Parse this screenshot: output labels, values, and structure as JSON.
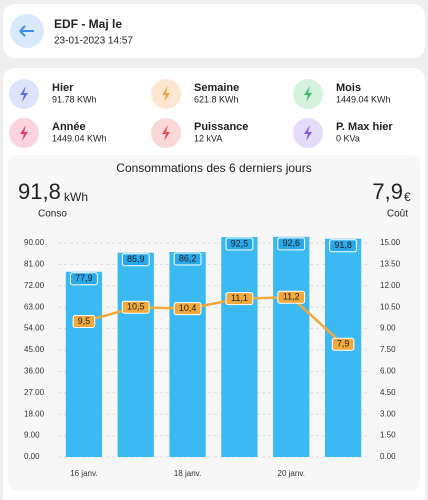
{
  "header": {
    "title": "EDF - Maj le",
    "subtitle": "23-01-2023 14:57"
  },
  "tiles": [
    {
      "label": "Hier",
      "value": "91.78 KWh"
    },
    {
      "label": "Semaine",
      "value": "621.8 KWh"
    },
    {
      "label": "Mois",
      "value": "1449.04 KWh"
    },
    {
      "label": "Année",
      "value": "1449.04 KWh"
    },
    {
      "label": "Puissance",
      "value": "12 kVA"
    },
    {
      "label": "P. Max hier",
      "value": "0 KVa"
    }
  ],
  "chart_data": {
    "type": "bar",
    "title": "Consommations des 6 derniers jours",
    "summary": {
      "conso_value": "91,8",
      "conso_unit": "kWh",
      "conso_label": "Conso",
      "cost_value": "7,9",
      "cost_unit": "€",
      "cost_label": "Coût"
    },
    "categories": [
      "16 janv.",
      null,
      "18 janv.",
      null,
      "20 janv.",
      null
    ],
    "series": [
      {
        "type": "bar",
        "color": "#3bb9f2",
        "values": [
          77.9,
          85.9,
          86.2,
          92.5,
          92.6,
          91.8
        ],
        "value_labels": [
          "77,9",
          "85,9",
          "86,2",
          "92,5",
          "92,6",
          "91,8"
        ]
      },
      {
        "type": "line",
        "axis": "y2",
        "color": "#f2a93b",
        "values": [
          9.5,
          10.5,
          10.4,
          11.1,
          11.2,
          7.9
        ],
        "value_labels": [
          "9,5",
          "10,5",
          "10,4",
          "11,1",
          "11,2",
          "7,9"
        ]
      }
    ],
    "ylim": [
      0,
      90
    ],
    "yticks": [
      {
        "value": 0,
        "label": "0.00"
      },
      {
        "value": 9,
        "label": "9.00"
      },
      {
        "value": 18,
        "label": "18.00"
      },
      {
        "value": 27,
        "label": "27.00"
      },
      {
        "value": 36,
        "label": "36.00"
      },
      {
        "value": 45,
        "label": "45.00"
      },
      {
        "value": 54,
        "label": "54.00"
      },
      {
        "value": 63,
        "label": "63.00"
      },
      {
        "value": 72,
        "label": "72.00"
      },
      {
        "value": 81,
        "label": "81.00"
      },
      {
        "value": 90,
        "label": "90.00"
      }
    ],
    "y2lim": [
      0,
      15
    ],
    "y2ticks": [
      {
        "value": 0,
        "label": "0.00"
      },
      {
        "value": 1.5,
        "label": "1.50"
      },
      {
        "value": 3,
        "label": "3.00"
      },
      {
        "value": 4.5,
        "label": "4.50"
      },
      {
        "value": 6,
        "label": "6.00"
      },
      {
        "value": 7.5,
        "label": "7.50"
      },
      {
        "value": 9,
        "label": "9.00"
      },
      {
        "value": 10.5,
        "label": "10.50"
      },
      {
        "value": 12,
        "label": "12.00"
      },
      {
        "value": 13.5,
        "label": "13.50"
      },
      {
        "value": 15,
        "label": "15.00"
      }
    ],
    "grid": true
  }
}
